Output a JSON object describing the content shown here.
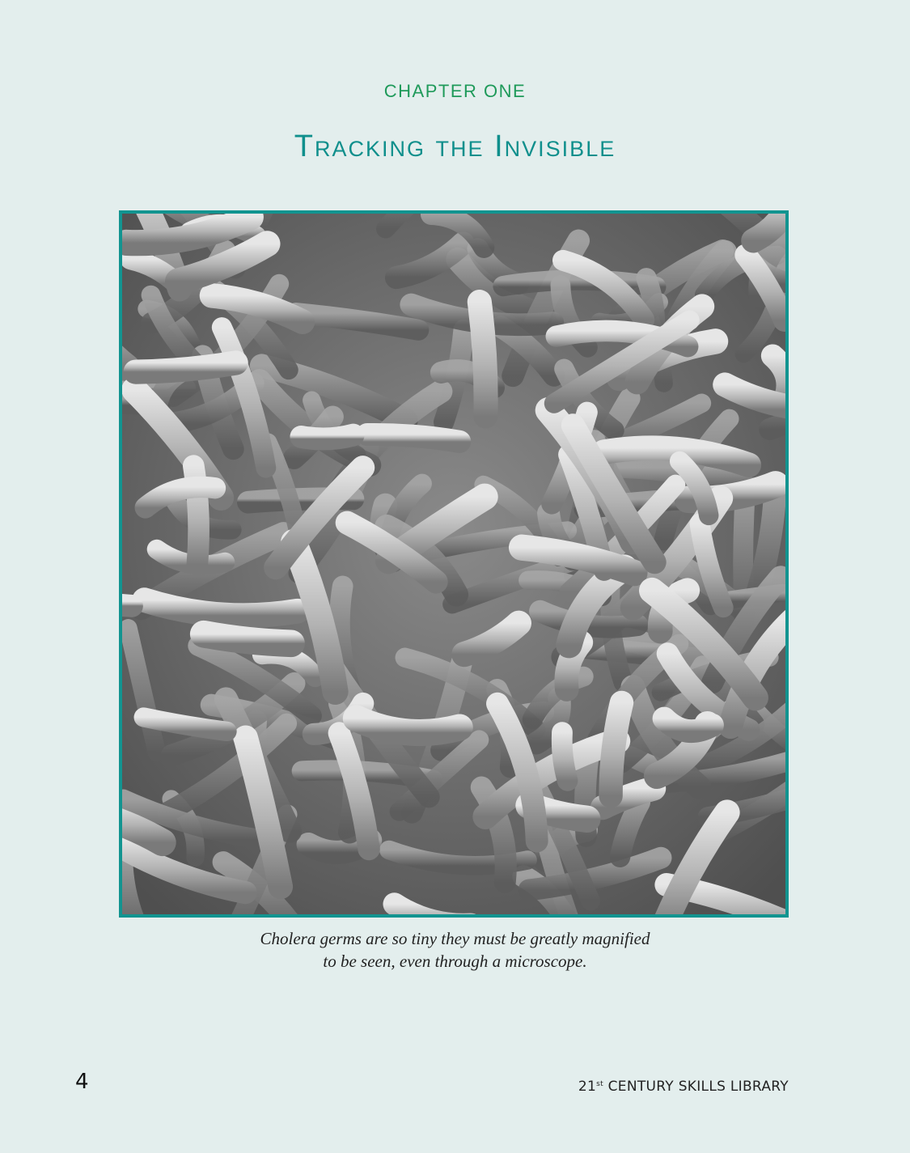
{
  "chapter": {
    "label": "CHAPTER ONE",
    "title": "Tracking the Invisible"
  },
  "figure": {
    "caption_line1": "Cholera germs are so tiny they must be greatly magnified",
    "caption_line2": "to be seen, even through a microscope.",
    "frame_color": "#129490"
  },
  "footer": {
    "page_number": "4",
    "series_prefix": "21",
    "series_sup": "st",
    "series_rest": " CENTURY SKILLS LIBRARY"
  }
}
